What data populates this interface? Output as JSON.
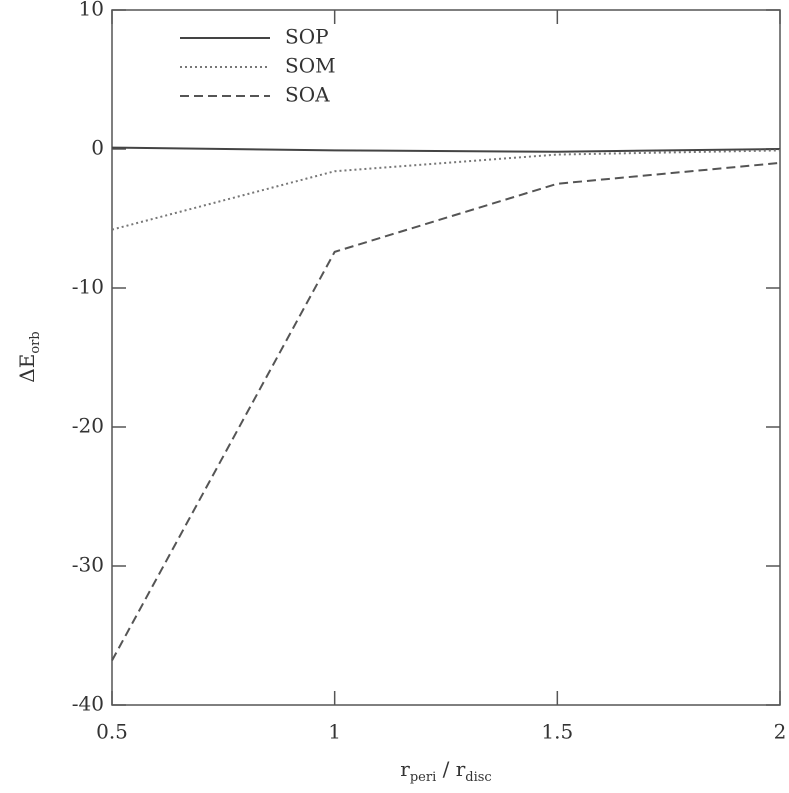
{
  "chart_data": {
    "type": "line",
    "x_label": [
      {
        "text": "r"
      },
      {
        "text": "peri",
        "sub": true
      },
      {
        "text": " / "
      },
      {
        "text": "r"
      },
      {
        "text": "disc",
        "sub": true
      }
    ],
    "y_label": [
      {
        "text": "ΔE"
      },
      {
        "text": "orb",
        "sub": true
      }
    ],
    "x": [
      0.5,
      1,
      1.5,
      2
    ],
    "series": [
      {
        "name": "SOP",
        "color": "#444444",
        "dash": "solid",
        "values": [
          0.1,
          -0.1,
          -0.2,
          0
        ]
      },
      {
        "name": "SOM",
        "color": "#777777",
        "dash": "dotted",
        "values": [
          -5.8,
          -1.6,
          -0.4,
          -0.1
        ]
      },
      {
        "name": "SOA",
        "color": "#555555",
        "dash": "dashed",
        "values": [
          -36.8,
          -7.4,
          -2.5,
          -1.0
        ]
      }
    ],
    "xlim": [
      0.5,
      2
    ],
    "xticks": [
      0.5,
      1,
      1.5,
      2
    ],
    "ylim": [
      -40,
      10
    ],
    "yticks": [
      -40,
      -30,
      -20,
      -10,
      0,
      10
    ],
    "legend": "upper left"
  }
}
